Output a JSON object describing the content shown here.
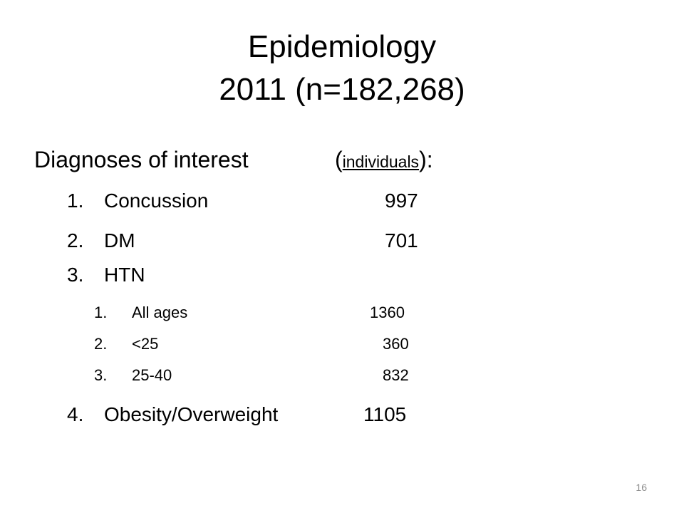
{
  "title": {
    "line1": "Epidemiology",
    "line2": "2011 (n=182,268)"
  },
  "heading": {
    "text": "Diagnoses of interest",
    "open_paren": "(",
    "underlined": "individuals",
    "close": "):"
  },
  "items": [
    {
      "num": "1.",
      "label": "Concussion",
      "value": "997"
    },
    {
      "num": "2.",
      "label": "DM",
      "value": "701"
    },
    {
      "num": "3.",
      "label": "HTN",
      "value": ""
    },
    {
      "num": "4.",
      "label": "Obesity/Overweight",
      "value": "1105"
    }
  ],
  "htn_sub": [
    {
      "num": "1.",
      "label": "All ages",
      "value": "1360"
    },
    {
      "num": "2.",
      "label": "<25",
      "value": "360"
    },
    {
      "num": "3.",
      "label": "25-40",
      "value": "832"
    }
  ],
  "slide_number": "16"
}
